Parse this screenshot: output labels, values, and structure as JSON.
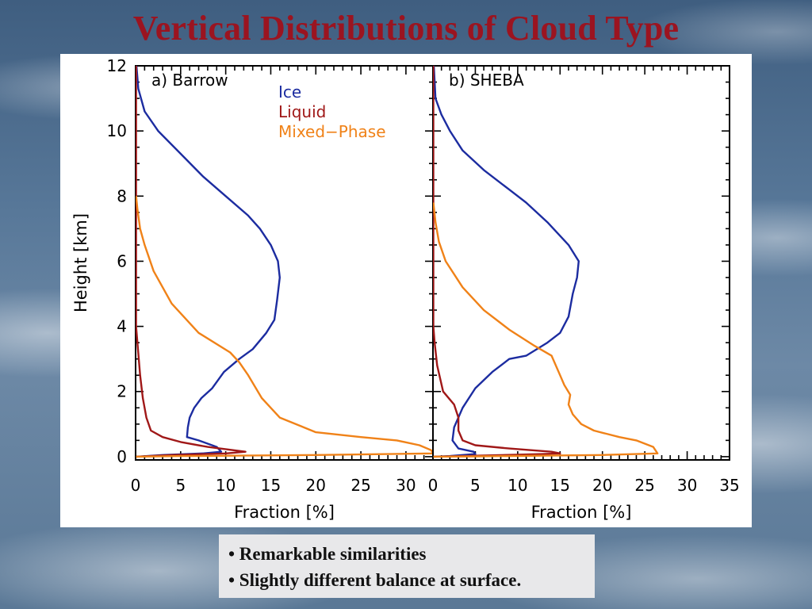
{
  "slide": {
    "title": "Vertical Distributions of Cloud Type",
    "bullets": [
      "• Remarkable similarities",
      "• Slightly different balance at surface."
    ]
  },
  "chart_data": [
    {
      "type": "line",
      "panel_label": "a) Barrow",
      "xlabel": "Fraction [%]",
      "ylabel": "Height [km]",
      "xlim": [
        0,
        33
      ],
      "ylim": [
        -0.1,
        12
      ],
      "xticks": [
        0,
        5,
        10,
        15,
        20,
        25,
        30
      ],
      "yticks": [
        0,
        2,
        4,
        6,
        8,
        10,
        12
      ],
      "legend": {
        "placement": "top-center",
        "entries": [
          "Ice",
          "Liquid",
          "Mixed−Phase"
        ]
      },
      "series": [
        {
          "name": "Ice",
          "color": "#1c2ca0",
          "points": [
            [
              0.1,
              0
            ],
            [
              3,
              0.05
            ],
            [
              7.5,
              0.1
            ],
            [
              9.5,
              0.15
            ],
            [
              9,
              0.3
            ],
            [
              7,
              0.5
            ],
            [
              5.7,
              0.6
            ],
            [
              5.8,
              0.9
            ],
            [
              6,
              1.2
            ],
            [
              6.5,
              1.5
            ],
            [
              7.3,
              1.8
            ],
            [
              8.5,
              2.1
            ],
            [
              9.8,
              2.6
            ],
            [
              11.5,
              3.0
            ],
            [
              13,
              3.3
            ],
            [
              14.5,
              3.8
            ],
            [
              15.4,
              4.2
            ],
            [
              15.7,
              4.8
            ],
            [
              16,
              5.5
            ],
            [
              15.8,
              6.0
            ],
            [
              15,
              6.5
            ],
            [
              13.8,
              7.0
            ],
            [
              12.5,
              7.4
            ],
            [
              10,
              8.0
            ],
            [
              7.5,
              8.6
            ],
            [
              5,
              9.3
            ],
            [
              2.5,
              10.0
            ],
            [
              1,
              10.6
            ],
            [
              0.3,
              11.3
            ],
            [
              0.1,
              12
            ]
          ]
        },
        {
          "name": "Liquid",
          "color": "#a01818",
          "points": [
            [
              0.1,
              0
            ],
            [
              4,
              0.05
            ],
            [
              10,
              0.1
            ],
            [
              12.2,
              0.15
            ],
            [
              8,
              0.3
            ],
            [
              5,
              0.45
            ],
            [
              3,
              0.6
            ],
            [
              1.7,
              0.8
            ],
            [
              1.2,
              1.2
            ],
            [
              0.8,
              1.8
            ],
            [
              0.5,
              2.5
            ],
            [
              0.2,
              3.5
            ],
            [
              0.05,
              4.0
            ],
            [
              0.05,
              12
            ]
          ]
        },
        {
          "name": "Mixed−Phase",
          "color": "#f08218",
          "points": [
            [
              0.05,
              0
            ],
            [
              5,
              0.02
            ],
            [
              20,
              0.05
            ],
            [
              33,
              0.1
            ],
            [
              32.8,
              0.2
            ],
            [
              31.5,
              0.35
            ],
            [
              29,
              0.5
            ],
            [
              25,
              0.6
            ],
            [
              20,
              0.75
            ],
            [
              16,
              1.2
            ],
            [
              14,
              1.8
            ],
            [
              12.5,
              2.5
            ],
            [
              11.5,
              2.9
            ],
            [
              10.5,
              3.2
            ],
            [
              7,
              3.8
            ],
            [
              4,
              4.7
            ],
            [
              2,
              5.7
            ],
            [
              1,
              6.5
            ],
            [
              0.5,
              7.0
            ],
            [
              0.2,
              7.6
            ],
            [
              0.05,
              8.0
            ]
          ]
        }
      ]
    },
    {
      "type": "line",
      "panel_label": "b) SHEBA",
      "xlabel": "Fraction [%]",
      "ylabel": "",
      "xlim": [
        0,
        35
      ],
      "ylim": [
        -0.1,
        12
      ],
      "xticks": [
        0,
        5,
        10,
        15,
        20,
        25,
        30,
        35
      ],
      "yticks": [
        0,
        2,
        4,
        6,
        8,
        10,
        12
      ],
      "series": [
        {
          "name": "Ice",
          "color": "#1c2ca0",
          "points": [
            [
              0.1,
              0
            ],
            [
              2,
              0.02
            ],
            [
              5,
              0.08
            ],
            [
              4.8,
              0.15
            ],
            [
              3,
              0.25
            ],
            [
              2.3,
              0.5
            ],
            [
              2.5,
              0.9
            ],
            [
              3.5,
              1.5
            ],
            [
              5,
              2.1
            ],
            [
              7,
              2.6
            ],
            [
              9,
              3.0
            ],
            [
              11,
              3.1
            ],
            [
              13.5,
              3.5
            ],
            [
              15,
              3.8
            ],
            [
              16,
              4.3
            ],
            [
              16.5,
              5.0
            ],
            [
              17,
              5.5
            ],
            [
              17.2,
              6.0
            ],
            [
              16,
              6.5
            ],
            [
              13.5,
              7.2
            ],
            [
              11,
              7.8
            ],
            [
              9,
              8.2
            ],
            [
              6,
              8.8
            ],
            [
              3.5,
              9.4
            ],
            [
              2,
              10.0
            ],
            [
              1,
              10.5
            ],
            [
              0.3,
              11.0
            ],
            [
              0.1,
              12
            ]
          ]
        },
        {
          "name": "Liquid",
          "color": "#a01818",
          "points": [
            [
              0.1,
              0
            ],
            [
              5,
              0.03
            ],
            [
              13,
              0.08
            ],
            [
              15,
              0.1
            ],
            [
              14,
              0.15
            ],
            [
              9,
              0.25
            ],
            [
              5,
              0.35
            ],
            [
              3.5,
              0.5
            ],
            [
              3,
              0.8
            ],
            [
              3,
              1.2
            ],
            [
              2.5,
              1.6
            ],
            [
              1.2,
              2.0
            ],
            [
              0.5,
              2.8
            ],
            [
              0.2,
              3.5
            ],
            [
              0.05,
              4.0
            ],
            [
              0.05,
              12
            ]
          ]
        },
        {
          "name": "Mixed−Phase",
          "color": "#f08218",
          "points": [
            [
              0.05,
              0
            ],
            [
              5,
              0.01
            ],
            [
              20,
              0.05
            ],
            [
              26.5,
              0.1
            ],
            [
              26,
              0.3
            ],
            [
              24,
              0.5
            ],
            [
              22,
              0.6
            ],
            [
              19,
              0.8
            ],
            [
              17.5,
              1.0
            ],
            [
              16.5,
              1.3
            ],
            [
              16,
              1.6
            ],
            [
              16.2,
              1.9
            ],
            [
              15.5,
              2.2
            ],
            [
              15,
              2.5
            ],
            [
              14,
              3.1
            ],
            [
              12,
              3.4
            ],
            [
              9,
              3.9
            ],
            [
              6,
              4.5
            ],
            [
              3.5,
              5.2
            ],
            [
              1.5,
              6.0
            ],
            [
              0.7,
              6.6
            ],
            [
              0.3,
              7.2
            ],
            [
              0.05,
              7.8
            ]
          ]
        }
      ]
    }
  ]
}
